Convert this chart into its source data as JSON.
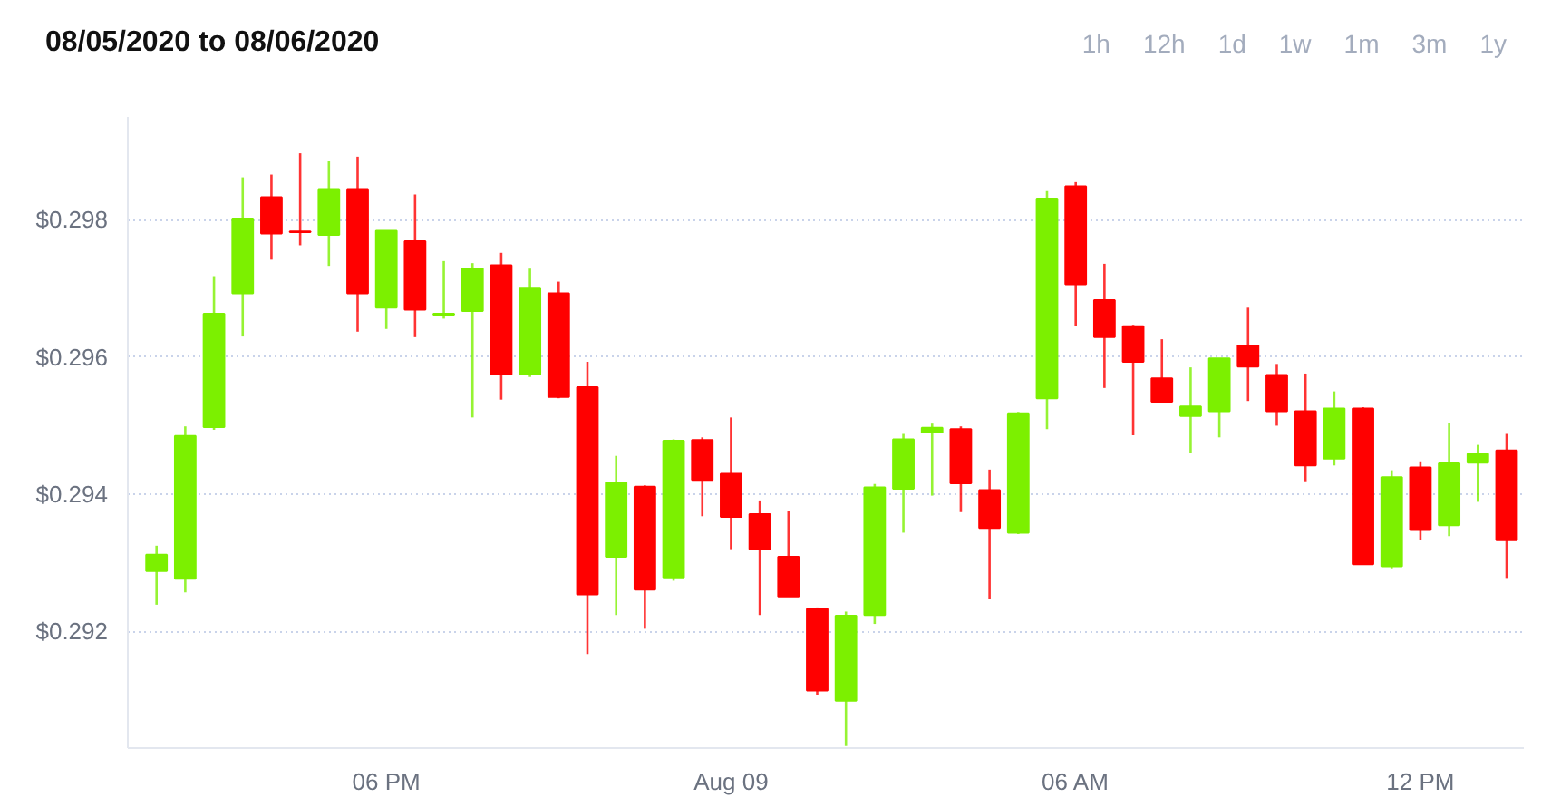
{
  "chart_data": {
    "type": "candlestick",
    "title": "08/05/2020 to 08/06/2020",
    "annotations": [
      "1h",
      "12h",
      "1d",
      "1w",
      "1m",
      "3m",
      "1y"
    ],
    "x": [
      "2020-08-08T14:00",
      "2020-08-08T14:30",
      "2020-08-08T15:00",
      "2020-08-08T15:30",
      "2020-08-08T16:00",
      "2020-08-08T16:30",
      "2020-08-08T17:00",
      "2020-08-08T17:30",
      "2020-08-08T18:00",
      "2020-08-08T18:30",
      "2020-08-08T19:00",
      "2020-08-08T19:30",
      "2020-08-08T20:00",
      "2020-08-08T20:30",
      "2020-08-08T21:00",
      "2020-08-08T21:30",
      "2020-08-08T22:00",
      "2020-08-08T22:30",
      "2020-08-08T23:00",
      "2020-08-08T23:30",
      "2020-08-09T00:00",
      "2020-08-09T00:30",
      "2020-08-09T01:00",
      "2020-08-09T01:30",
      "2020-08-09T02:00",
      "2020-08-09T02:30",
      "2020-08-09T03:00",
      "2020-08-09T03:30",
      "2020-08-09T04:00",
      "2020-08-09T04:30",
      "2020-08-09T05:00",
      "2020-08-09T05:30",
      "2020-08-09T06:00",
      "2020-08-09T06:30",
      "2020-08-09T07:00",
      "2020-08-09T07:30",
      "2020-08-09T08:00",
      "2020-08-09T08:30",
      "2020-08-09T09:00",
      "2020-08-09T09:30",
      "2020-08-09T10:00",
      "2020-08-09T10:30",
      "2020-08-09T11:00",
      "2020-08-09T11:30",
      "2020-08-09T12:00",
      "2020-08-09T12:30",
      "2020-08-09T13:00",
      "2020-08-09T13:30"
    ],
    "ohlc": [
      [
        0.29288,
        0.29325,
        0.29239,
        0.29312
      ],
      [
        0.29277,
        0.29499,
        0.29257,
        0.29485
      ],
      [
        0.29498,
        0.29718,
        0.29494,
        0.29663
      ],
      [
        0.29693,
        0.29862,
        0.2963,
        0.29802
      ],
      [
        0.29833,
        0.29866,
        0.29742,
        0.2978
      ],
      [
        0.29783,
        0.29897,
        0.29763,
        0.29782
      ],
      [
        0.29778,
        0.29886,
        0.29733,
        0.29845
      ],
      [
        0.29845,
        0.29892,
        0.29637,
        0.29693
      ],
      [
        0.29672,
        0.29784,
        0.29641,
        0.29784
      ],
      [
        0.29769,
        0.29837,
        0.29629,
        0.29669
      ],
      [
        0.29662,
        0.2974,
        0.29656,
        0.29663
      ],
      [
        0.29667,
        0.29737,
        0.29512,
        0.29729
      ],
      [
        0.29734,
        0.29752,
        0.29538,
        0.29575
      ],
      [
        0.29575,
        0.29729,
        0.29571,
        0.297
      ],
      [
        0.29693,
        0.2971,
        0.2954,
        0.29542
      ],
      [
        0.29556,
        0.29593,
        0.29167,
        0.29254
      ],
      [
        0.29309,
        0.29456,
        0.29224,
        0.29417
      ],
      [
        0.29411,
        0.29413,
        0.29204,
        0.29261
      ],
      [
        0.29279,
        0.2948,
        0.29274,
        0.29478
      ],
      [
        0.29479,
        0.29483,
        0.29368,
        0.29421
      ],
      [
        0.2943,
        0.29512,
        0.2932,
        0.29367
      ],
      [
        0.29371,
        0.29391,
        0.29224,
        0.2932
      ],
      [
        0.29309,
        0.29375,
        0.29251,
        0.29251
      ],
      [
        0.29233,
        0.29235,
        0.29108,
        0.29114
      ],
      [
        0.29099,
        0.29229,
        0.29033,
        0.29223
      ],
      [
        0.29224,
        0.29415,
        0.29211,
        0.2941
      ],
      [
        0.29408,
        0.29488,
        0.29344,
        0.2948
      ],
      [
        0.2949,
        0.29503,
        0.29398,
        0.29497
      ],
      [
        0.29495,
        0.29499,
        0.29374,
        0.29416
      ],
      [
        0.29406,
        0.29436,
        0.29248,
        0.29351
      ],
      [
        0.29344,
        0.2952,
        0.29342,
        0.29518
      ],
      [
        0.2954,
        0.29842,
        0.29495,
        0.29831
      ],
      [
        0.29849,
        0.29855,
        0.29645,
        0.29706
      ],
      [
        0.29683,
        0.29736,
        0.29555,
        0.29629
      ],
      [
        0.29645,
        0.29647,
        0.29486,
        0.29593
      ],
      [
        0.29569,
        0.29626,
        0.29535,
        0.29535
      ],
      [
        0.29514,
        0.29585,
        0.2946,
        0.29528
      ],
      [
        0.29521,
        0.29598,
        0.29483,
        0.29598
      ],
      [
        0.29617,
        0.29672,
        0.29536,
        0.29586
      ],
      [
        0.29574,
        0.2959,
        0.295,
        0.29521
      ],
      [
        0.29521,
        0.29576,
        0.29419,
        0.29442
      ],
      [
        0.29452,
        0.2955,
        0.29442,
        0.29525
      ],
      [
        0.29525,
        0.29527,
        0.29298,
        0.29298
      ],
      [
        0.29295,
        0.29435,
        0.29292,
        0.29425
      ],
      [
        0.29439,
        0.29448,
        0.29333,
        0.29348
      ],
      [
        0.29355,
        0.29504,
        0.29339,
        0.29445
      ],
      [
        0.29446,
        0.29472,
        0.29389,
        0.29459
      ],
      [
        0.29464,
        0.29488,
        0.29278,
        0.29333
      ]
    ],
    "colors": [
      "#7cf000",
      "#7cf000",
      "#7cf000",
      "#7cf000",
      "#ff0000",
      "#ff0000",
      "#7cf000",
      "#ff0000",
      "#7cf000",
      "#ff0000",
      "#7cf000",
      "#7cf000",
      "#ff0000",
      "#7cf000",
      "#ff0000",
      "#ff0000",
      "#7cf000",
      "#ff0000",
      "#7cf000",
      "#ff0000",
      "#ff0000",
      "#ff0000",
      "#ff0000",
      "#ff0000",
      "#7cf000",
      "#7cf000",
      "#7cf000",
      "#7cf000",
      "#ff0000",
      "#ff0000",
      "#7cf000",
      "#7cf000",
      "#ff0000",
      "#ff0000",
      "#ff0000",
      "#ff0000",
      "#7cf000",
      "#7cf000",
      "#ff0000",
      "#ff0000",
      "#ff0000",
      "#7cf000",
      "#ff0000",
      "#7cf000",
      "#ff0000",
      "#7cf000",
      "#7cf000",
      "#ff0000"
    ],
    "xlim": [
      "2020-08-08T13:30",
      "2020-08-09T13:48"
    ],
    "xticks": [
      {
        "value": "2020-08-08T18:00",
        "label": "06 PM"
      },
      {
        "value": "2020-08-09T00:00",
        "label": "Aug 09"
      },
      {
        "value": "2020-08-09T06:00",
        "label": "06 AM"
      },
      {
        "value": "2020-08-09T12:00",
        "label": "12 PM"
      }
    ],
    "ylim": [
      0.2903,
      0.2995
    ],
    "yticks": [
      {
        "value": 0.292,
        "label": "$0.292"
      },
      {
        "value": 0.294,
        "label": "$0.294"
      },
      {
        "value": 0.296,
        "label": "$0.296"
      },
      {
        "value": 0.298,
        "label": "$0.298"
      }
    ],
    "grid": "y"
  }
}
